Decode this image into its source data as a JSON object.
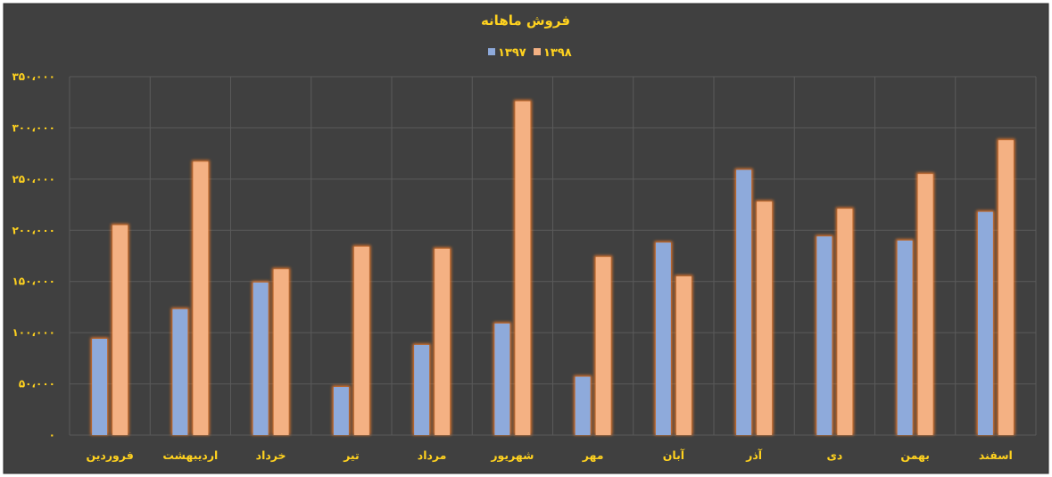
{
  "chart_data": {
    "type": "bar",
    "title": "فروش ماهانه",
    "xlabel": "",
    "ylabel": "",
    "categories": [
      "فروردین",
      "اردیبهشت",
      "خرداد",
      "تیر",
      "مرداد",
      "شهریور",
      "مهر",
      "آبان",
      "آذر",
      "دی",
      "بهمن",
      "اسفند"
    ],
    "series": [
      {
        "name": "۱۳۹۷",
        "color": "#8eaadb",
        "values": [
          94000,
          123000,
          149000,
          47000,
          88000,
          109000,
          57000,
          188000,
          259000,
          194000,
          190000,
          218000
        ]
      },
      {
        "name": "۱۳۹۸",
        "color": "#f4b183",
        "values": [
          205000,
          267000,
          162000,
          184000,
          182000,
          326000,
          174000,
          155000,
          228000,
          221000,
          255000,
          288000
        ]
      }
    ],
    "ylim": [
      0,
      350000
    ],
    "yticks": [
      {
        "value": 0,
        "label": "۰"
      },
      {
        "value": 50000,
        "label": "۵۰،۰۰۰"
      },
      {
        "value": 100000,
        "label": "۱۰۰،۰۰۰"
      },
      {
        "value": 150000,
        "label": "۱۵۰،۰۰۰"
      },
      {
        "value": 200000,
        "label": "۲۰۰،۰۰۰"
      },
      {
        "value": 250000,
        "label": "۲۵۰،۰۰۰"
      },
      {
        "value": 300000,
        "label": "۳۰۰،۰۰۰"
      },
      {
        "value": 350000,
        "label": "۳۵۰،۰۰۰"
      }
    ],
    "grid": true,
    "legend": "top-center",
    "background_color": "#404040",
    "text_color": "#ffd21f",
    "grid_color": "#5a5a5a",
    "bar_glow_color": "#ff7f27"
  }
}
